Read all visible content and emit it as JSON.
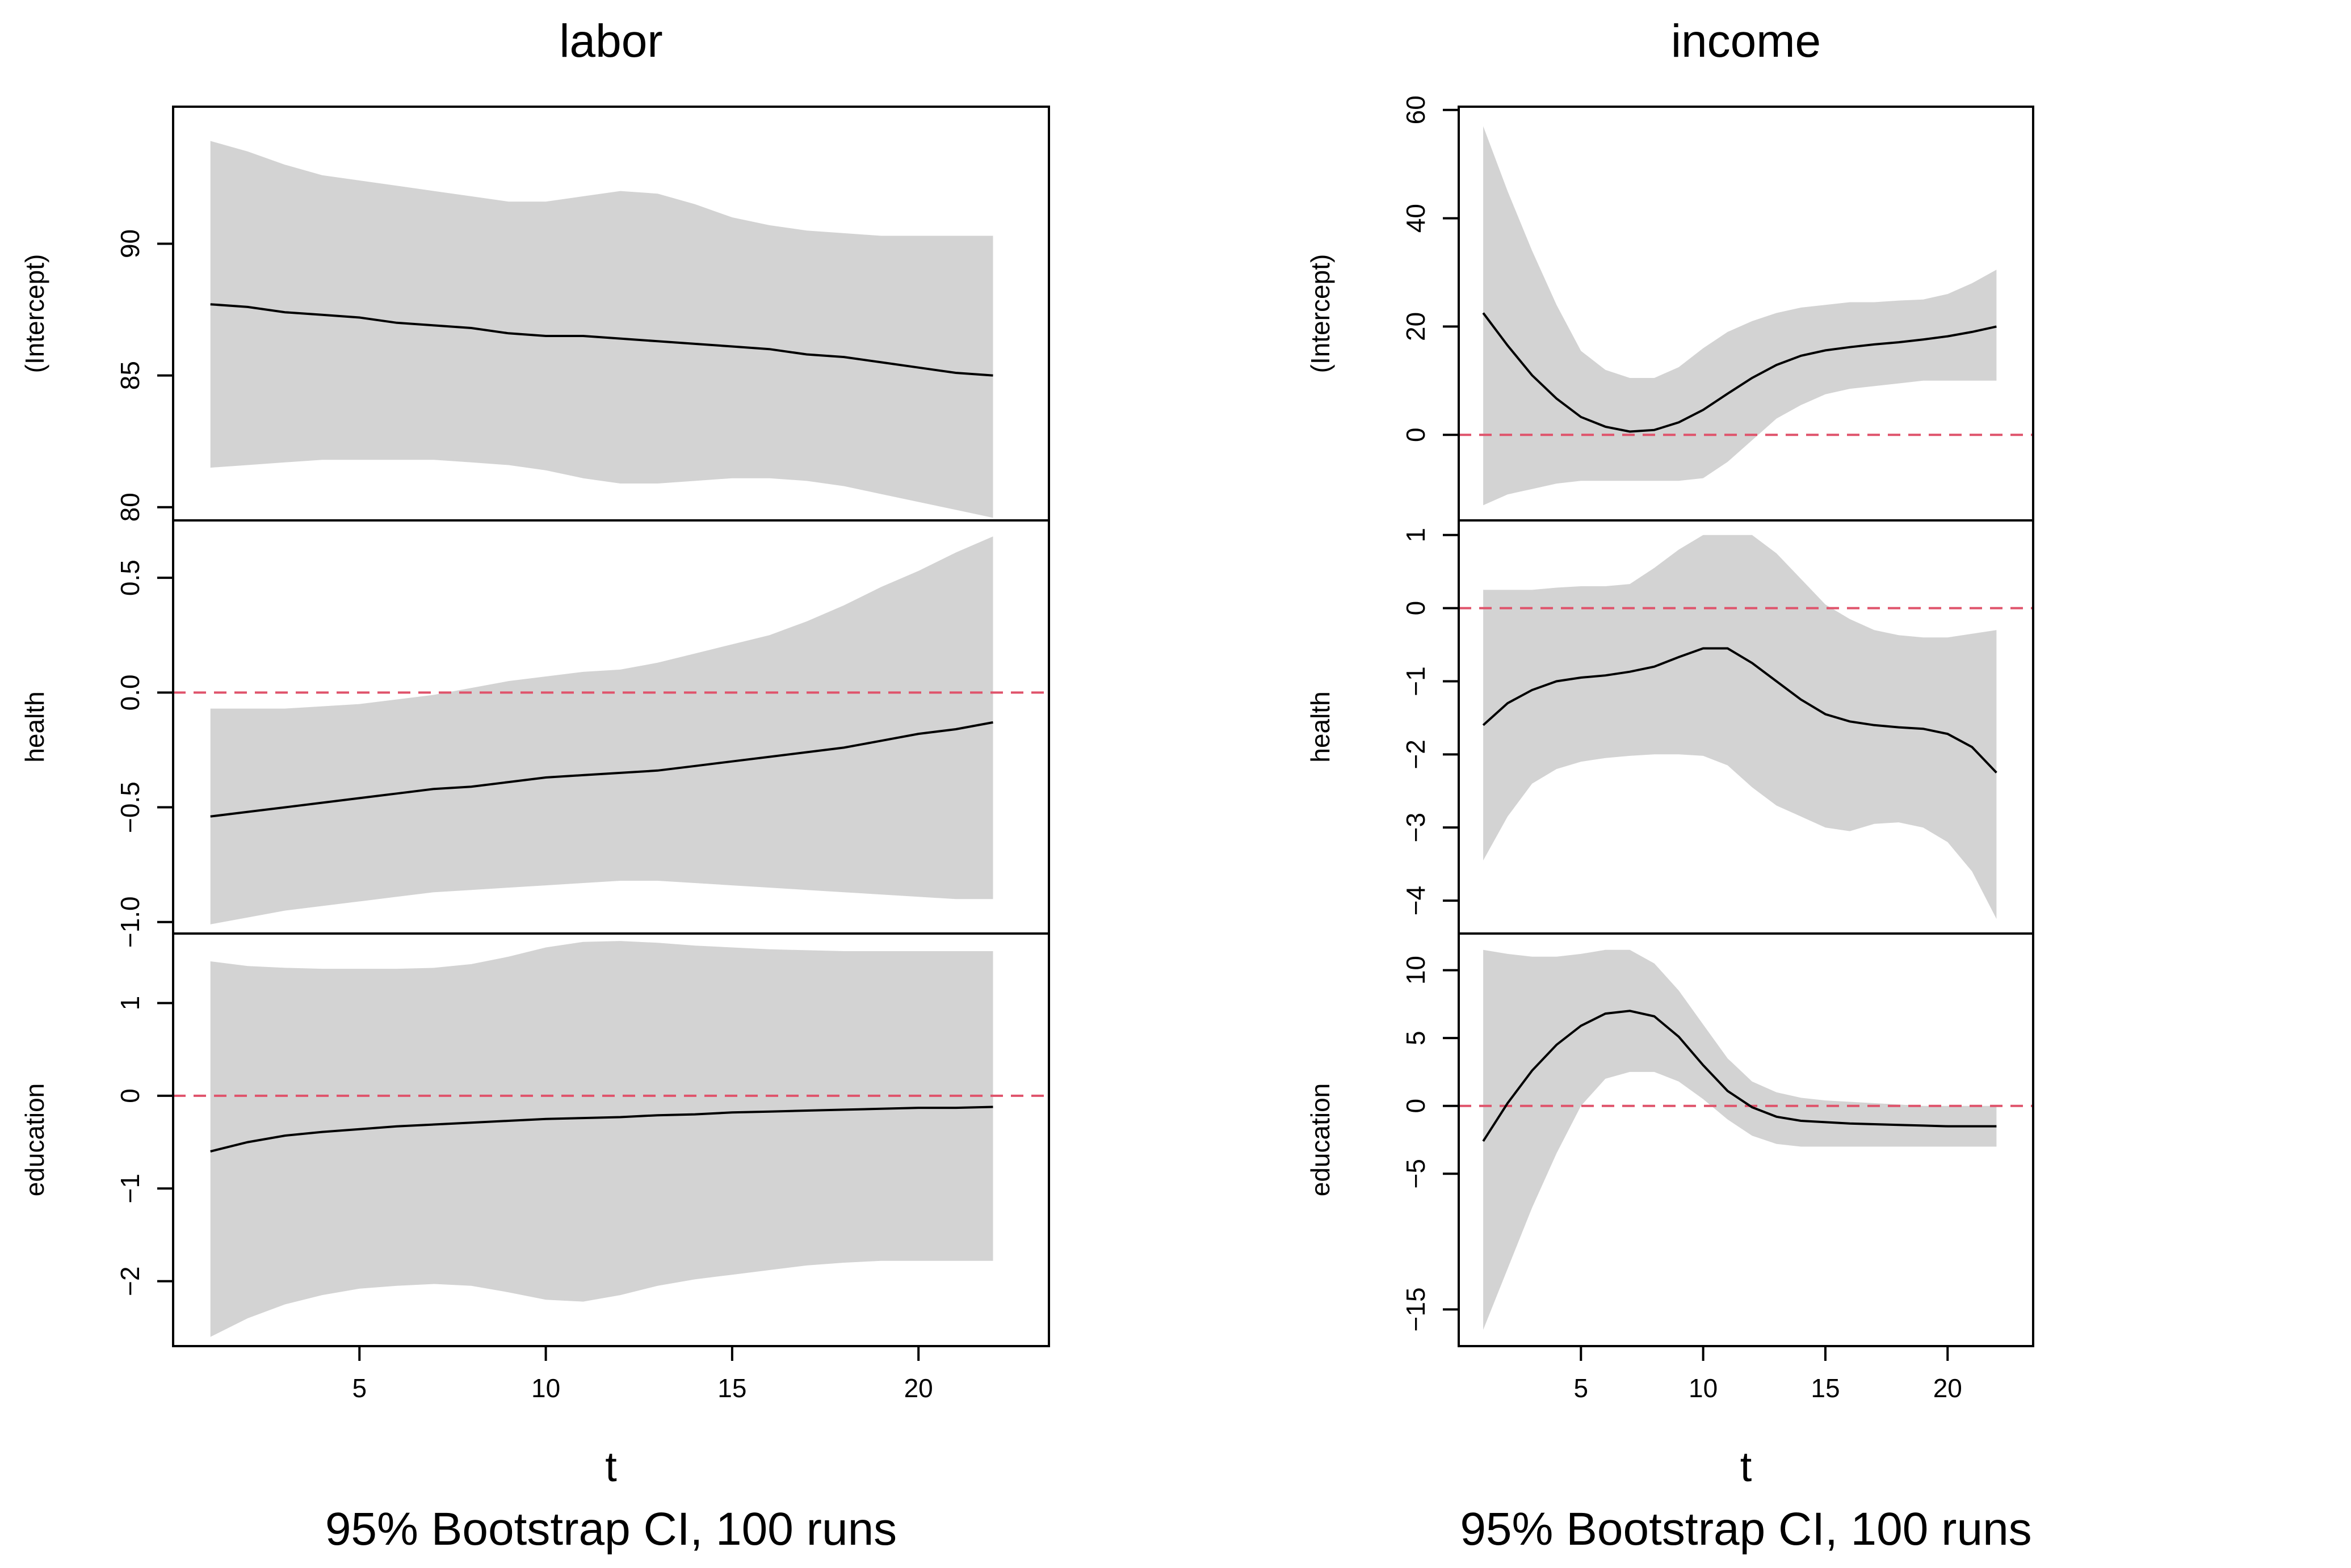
{
  "chart_data": [
    {
      "type": "line",
      "title": "labor",
      "xlabel": "t",
      "caption": "95% Bootstrap CI, 100 runs",
      "xlim": [
        0,
        23.5
      ],
      "xticks": [
        "5",
        "10",
        "15",
        "20"
      ],
      "panels": [
        {
          "ylabel": "(Intercept)",
          "ylim": [
            79.5,
            95.2
          ],
          "yticks": [
            "80",
            "85",
            "90"
          ],
          "zero_line": false,
          "t": [
            1,
            2,
            3,
            4,
            5,
            6,
            7,
            8,
            9,
            10,
            11,
            12,
            13,
            14,
            15,
            16,
            17,
            18,
            19,
            20,
            21,
            22
          ],
          "estimate": [
            87.7,
            87.6,
            87.4,
            87.3,
            87.2,
            87.0,
            86.9,
            86.8,
            86.6,
            86.5,
            86.5,
            86.4,
            86.3,
            86.2,
            86.1,
            86.0,
            85.8,
            85.7,
            85.5,
            85.3,
            85.1,
            85.0
          ],
          "ci_upper": [
            93.9,
            93.5,
            93.0,
            92.6,
            92.4,
            92.2,
            92.0,
            91.8,
            91.6,
            91.6,
            91.8,
            92.0,
            91.9,
            91.5,
            91.0,
            90.7,
            90.5,
            90.4,
            90.3,
            90.3,
            90.3,
            90.3
          ],
          "ci_lower": [
            81.5,
            81.6,
            81.7,
            81.8,
            81.8,
            81.8,
            81.8,
            81.7,
            81.6,
            81.4,
            81.1,
            80.9,
            80.9,
            81.0,
            81.1,
            81.1,
            81.0,
            80.8,
            80.5,
            80.2,
            79.9,
            79.6
          ]
        },
        {
          "ylabel": "health",
          "ylim": [
            -1.05,
            0.75
          ],
          "yticks": [
            "−1.0",
            "−0.5",
            "0.0",
            "0.5"
          ],
          "zero_line": true,
          "t": [
            1,
            2,
            3,
            4,
            5,
            6,
            7,
            8,
            9,
            10,
            11,
            12,
            13,
            14,
            15,
            16,
            17,
            18,
            19,
            20,
            21,
            22
          ],
          "estimate": [
            -0.54,
            -0.52,
            -0.5,
            -0.48,
            -0.46,
            -0.44,
            -0.42,
            -0.41,
            -0.39,
            -0.37,
            -0.36,
            -0.35,
            -0.34,
            -0.32,
            -0.3,
            -0.28,
            -0.26,
            -0.24,
            -0.21,
            -0.18,
            -0.16,
            -0.13
          ],
          "ci_upper": [
            -0.07,
            -0.07,
            -0.07,
            -0.06,
            -0.05,
            -0.03,
            -0.01,
            0.02,
            0.05,
            0.07,
            0.09,
            0.1,
            0.13,
            0.17,
            0.21,
            0.25,
            0.31,
            0.38,
            0.46,
            0.53,
            0.61,
            0.68
          ],
          "ci_lower": [
            -1.01,
            -0.98,
            -0.95,
            -0.93,
            -0.91,
            -0.89,
            -0.87,
            -0.86,
            -0.85,
            -0.84,
            -0.83,
            -0.82,
            -0.82,
            -0.83,
            -0.84,
            -0.85,
            -0.86,
            -0.87,
            -0.88,
            -0.89,
            -0.9,
            -0.9
          ]
        },
        {
          "ylabel": "education",
          "ylim": [
            -2.7,
            1.75
          ],
          "yticks": [
            "−2",
            "−1",
            "0",
            "1"
          ],
          "zero_line": true,
          "t": [
            1,
            2,
            3,
            4,
            5,
            6,
            7,
            8,
            9,
            10,
            11,
            12,
            13,
            14,
            15,
            16,
            17,
            18,
            19,
            20,
            21,
            22
          ],
          "estimate": [
            -0.6,
            -0.5,
            -0.43,
            -0.39,
            -0.36,
            -0.33,
            -0.31,
            -0.29,
            -0.27,
            -0.25,
            -0.24,
            -0.23,
            -0.21,
            -0.2,
            -0.18,
            -0.17,
            -0.16,
            -0.15,
            -0.14,
            -0.13,
            -0.13,
            -0.12
          ],
          "ci_upper": [
            1.45,
            1.4,
            1.38,
            1.37,
            1.37,
            1.37,
            1.38,
            1.42,
            1.5,
            1.6,
            1.66,
            1.67,
            1.65,
            1.62,
            1.6,
            1.58,
            1.57,
            1.56,
            1.56,
            1.56,
            1.56,
            1.56
          ],
          "ci_lower": [
            -2.6,
            -2.4,
            -2.25,
            -2.15,
            -2.08,
            -2.05,
            -2.03,
            -2.05,
            -2.12,
            -2.2,
            -2.22,
            -2.15,
            -2.05,
            -1.98,
            -1.93,
            -1.88,
            -1.83,
            -1.8,
            -1.78,
            -1.78,
            -1.78,
            -1.78
          ]
        }
      ]
    },
    {
      "type": "line",
      "title": "income",
      "xlabel": "t",
      "caption": "95% Bootstrap CI, 100 runs",
      "xlim": [
        0,
        23.5
      ],
      "xticks": [
        "5",
        "10",
        "15",
        "20"
      ],
      "panels": [
        {
          "ylabel": "(Intercept)",
          "ylim": [
            -15.8,
            60.6
          ],
          "yticks": [
            "0",
            "20",
            "40",
            "60"
          ],
          "zero_line": true,
          "t": [
            1,
            2,
            3,
            4,
            5,
            6,
            7,
            8,
            9,
            10,
            11,
            12,
            13,
            14,
            15,
            16,
            17,
            18,
            19,
            20,
            21,
            22
          ],
          "estimate": [
            22.5,
            16.5,
            11.0,
            6.7,
            3.3,
            1.5,
            0.6,
            0.9,
            2.3,
            4.6,
            7.6,
            10.5,
            12.9,
            14.6,
            15.6,
            16.2,
            16.7,
            17.1,
            17.6,
            18.2,
            19.0,
            20.0
          ],
          "ci_upper": [
            57.0,
            45.0,
            34.0,
            24.0,
            15.5,
            12.0,
            10.5,
            10.5,
            12.5,
            16.0,
            19.0,
            21.0,
            22.5,
            23.5,
            24.0,
            24.5,
            24.5,
            24.8,
            25.0,
            26.0,
            28.0,
            30.5
          ],
          "ci_lower": [
            -13.0,
            -11.0,
            -10.0,
            -9.0,
            -8.5,
            -8.5,
            -8.5,
            -8.5,
            -8.5,
            -8.0,
            -5.0,
            -1.0,
            3.0,
            5.5,
            7.5,
            8.5,
            9.0,
            9.5,
            10.0,
            10.0,
            10.0,
            10.0
          ]
        },
        {
          "ylabel": "health",
          "ylim": [
            -4.45,
            1.2
          ],
          "yticks": [
            "−4",
            "−3",
            "−2",
            "−1",
            "0",
            "1"
          ],
          "zero_line": true,
          "t": [
            1,
            2,
            3,
            4,
            5,
            6,
            7,
            8,
            9,
            10,
            11,
            12,
            13,
            14,
            15,
            16,
            17,
            18,
            19,
            20,
            21,
            22
          ],
          "estimate": [
            -1.6,
            -1.3,
            -1.12,
            -1.0,
            -0.95,
            -0.92,
            -0.87,
            -0.8,
            -0.67,
            -0.55,
            -0.55,
            -0.75,
            -1.0,
            -1.25,
            -1.45,
            -1.55,
            -1.6,
            -1.63,
            -1.65,
            -1.72,
            -1.9,
            -2.25
          ],
          "ci_upper": [
            0.25,
            0.25,
            0.25,
            0.28,
            0.3,
            0.3,
            0.33,
            0.55,
            0.8,
            1.0,
            1.0,
            1.0,
            0.75,
            0.4,
            0.05,
            -0.15,
            -0.3,
            -0.37,
            -0.4,
            -0.4,
            -0.35,
            -0.3
          ],
          "ci_lower": [
            -3.45,
            -2.85,
            -2.4,
            -2.2,
            -2.1,
            -2.05,
            -2.02,
            -2.0,
            -2.0,
            -2.02,
            -2.15,
            -2.45,
            -2.7,
            -2.85,
            -3.0,
            -3.05,
            -2.95,
            -2.93,
            -3.0,
            -3.2,
            -3.6,
            -4.25
          ]
        },
        {
          "ylabel": "education",
          "ylim": [
            -17.7,
            12.7
          ],
          "yticks": [
            "−15",
            "−5",
            "0",
            "5",
            "10"
          ],
          "zero_line": true,
          "t": [
            1,
            2,
            3,
            4,
            5,
            6,
            7,
            8,
            9,
            10,
            11,
            12,
            13,
            14,
            15,
            16,
            17,
            18,
            19,
            20,
            21,
            22
          ],
          "estimate": [
            -2.6,
            0.2,
            2.6,
            4.5,
            5.9,
            6.8,
            7.0,
            6.6,
            5.1,
            3.0,
            1.1,
            -0.1,
            -0.8,
            -1.1,
            -1.2,
            -1.3,
            -1.35,
            -1.4,
            -1.45,
            -1.5,
            -1.5,
            -1.5
          ],
          "ci_upper": [
            11.5,
            11.2,
            11.0,
            11.0,
            11.2,
            11.5,
            11.5,
            10.5,
            8.5,
            6.0,
            3.5,
            1.8,
            1.0,
            0.6,
            0.4,
            0.3,
            0.2,
            0.1,
            0.0,
            0.0,
            0.0,
            0.0
          ],
          "ci_lower": [
            -16.5,
            -12.0,
            -7.5,
            -3.5,
            0.0,
            2.0,
            2.5,
            2.5,
            1.8,
            0.5,
            -1.0,
            -2.2,
            -2.8,
            -3.0,
            -3.0,
            -3.0,
            -3.0,
            -3.0,
            -3.0,
            -3.0,
            -3.0,
            -3.0
          ]
        }
      ]
    }
  ]
}
